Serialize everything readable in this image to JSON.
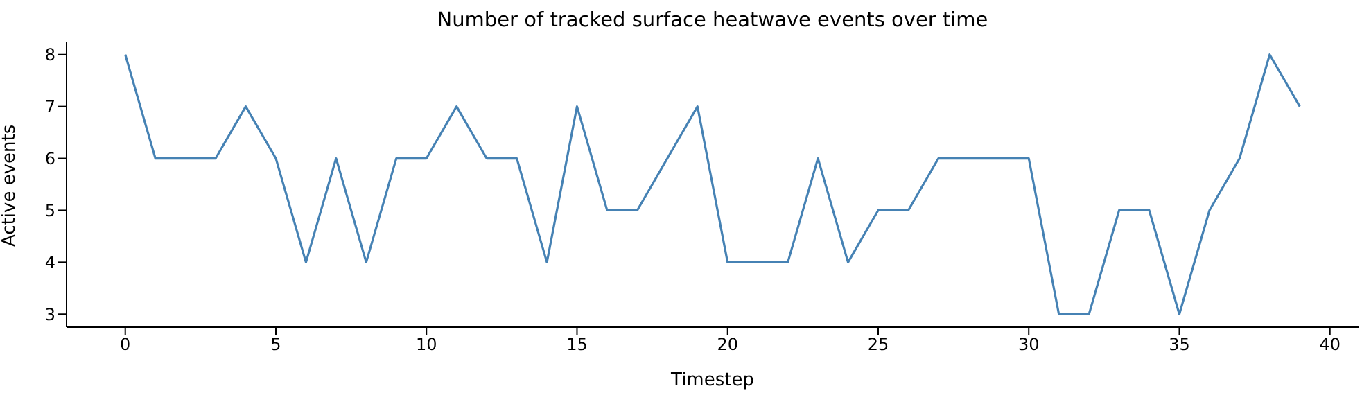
{
  "chart_data": {
    "type": "line",
    "title": "Number of tracked surface heatwave events over time",
    "xlabel": "Timestep",
    "ylabel": "Active events",
    "x": [
      0,
      1,
      2,
      3,
      4,
      5,
      6,
      7,
      8,
      9,
      10,
      11,
      12,
      13,
      14,
      15,
      16,
      17,
      18,
      19,
      20,
      21,
      22,
      23,
      24,
      25,
      26,
      27,
      28,
      29,
      30,
      31,
      32,
      33,
      34,
      35,
      36,
      37,
      38,
      39
    ],
    "series": [
      {
        "color": "#4682b4",
        "values": [
          8,
          6,
          6,
          6,
          7,
          6,
          4,
          6,
          4,
          6,
          6,
          7,
          6,
          6,
          4,
          7,
          5,
          5,
          6,
          7,
          4,
          4,
          4,
          6,
          4,
          5,
          5,
          6,
          6,
          6,
          6,
          3,
          3,
          5,
          5,
          3,
          5,
          6,
          8,
          7
        ]
      }
    ],
    "xlim": [
      -1.95,
      40.95
    ],
    "xticks": [
      0,
      5,
      10,
      15,
      20,
      25,
      30,
      35,
      40
    ],
    "ylim": [
      2.75,
      8.25
    ],
    "yticks": [
      3,
      4,
      5,
      6,
      7,
      8
    ],
    "grid": false,
    "legend": false,
    "marker": "none",
    "line_style": "solid"
  }
}
